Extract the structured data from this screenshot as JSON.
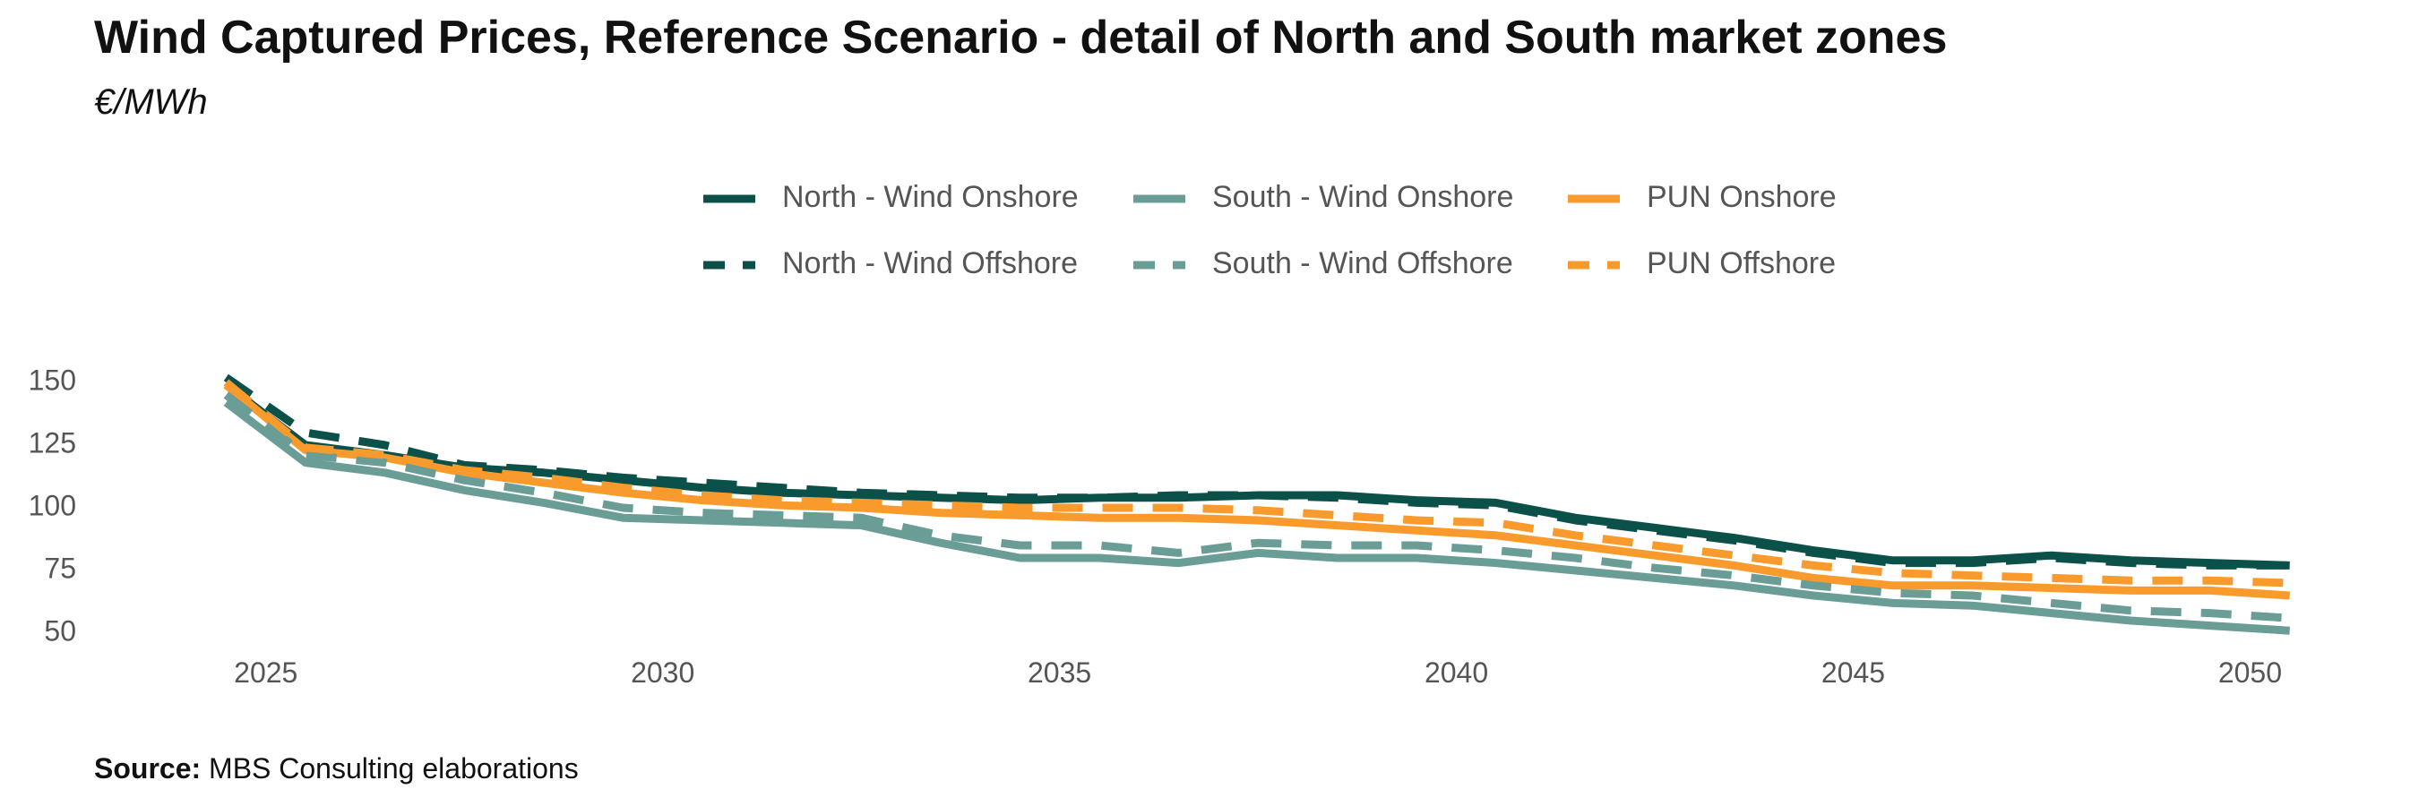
{
  "title": "Wind Captured Prices, Reference Scenario - detail of North and South market zones",
  "subtitle": "€/MWh",
  "source": {
    "label": "Source:",
    "text": "MBS Consulting elaborations"
  },
  "colors": {
    "north": "#0b5149",
    "south": "#6a9d96",
    "pun": "#f89a2c",
    "axis_text": "#555555"
  },
  "chart_data": {
    "type": "line",
    "x": [
      2024.5,
      2025.5,
      2026.5,
      2027.5,
      2028.5,
      2029.5,
      2030.5,
      2031.5,
      2032.5,
      2033.5,
      2034.5,
      2035.5,
      2036.5,
      2037.5,
      2038.5,
      2039.5,
      2040.5,
      2041.5,
      2042.5,
      2043.5,
      2044.5,
      2045.5,
      2046.5,
      2047.5,
      2048.5,
      2049.5,
      2050.5
    ],
    "xticks": [
      2025,
      2030,
      2035,
      2040,
      2045,
      2050
    ],
    "yticks": [
      50,
      75,
      100,
      125,
      150
    ],
    "xlim": [
      2023.4,
      2051.0
    ],
    "ylim": [
      40,
      165
    ],
    "grid": false,
    "legend_position": "top",
    "series": [
      {
        "name": "North - Wind Onshore",
        "style": "solid",
        "color": "#0b5149",
        "values": [
          149,
          125,
          121,
          116,
          114,
          111,
          108,
          106,
          105,
          104,
          103,
          104,
          104,
          105,
          105,
          103,
          102,
          96,
          92,
          88,
          83,
          79,
          79,
          81,
          79,
          78,
          77
        ]
      },
      {
        "name": "North - Wind Offshore",
        "style": "dashed",
        "color": "#0b5149",
        "values": [
          152,
          130,
          125,
          117,
          115,
          112,
          110,
          108,
          106,
          105,
          104,
          104,
          105,
          105,
          104,
          102,
          101,
          95,
          91,
          87,
          82,
          78,
          78,
          80,
          78,
          77,
          77
        ]
      },
      {
        "name": "South - Wind Onshore",
        "style": "solid",
        "color": "#6a9d96",
        "values": [
          142,
          118,
          114,
          107,
          102,
          96,
          95,
          94,
          93,
          86,
          80,
          80,
          78,
          82,
          80,
          80,
          78,
          75,
          72,
          69,
          65,
          62,
          61,
          58,
          55,
          53,
          51
        ]
      },
      {
        "name": "South - Wind Offshore",
        "style": "dashed",
        "color": "#6a9d96",
        "values": [
          145,
          121,
          118,
          111,
          106,
          100,
          98,
          97,
          96,
          89,
          85,
          85,
          82,
          86,
          85,
          85,
          83,
          80,
          76,
          73,
          69,
          66,
          65,
          62,
          59,
          58,
          56
        ]
      },
      {
        "name": "PUN Onshore",
        "style": "solid",
        "color": "#f89a2c",
        "values": [
          149,
          123,
          120,
          114,
          110,
          106,
          103,
          101,
          100,
          98,
          97,
          96,
          96,
          95,
          93,
          91,
          89,
          85,
          81,
          77,
          72,
          69,
          69,
          68,
          67,
          67,
          65
        ]
      },
      {
        "name": "PUN Offshore",
        "style": "dashed",
        "color": "#f89a2c",
        "values": [
          150,
          124,
          121,
          115,
          112,
          108,
          105,
          103,
          102,
          101,
          100,
          100,
          100,
          99,
          97,
          95,
          94,
          89,
          85,
          81,
          77,
          74,
          73,
          72,
          71,
          71,
          70
        ]
      }
    ]
  }
}
